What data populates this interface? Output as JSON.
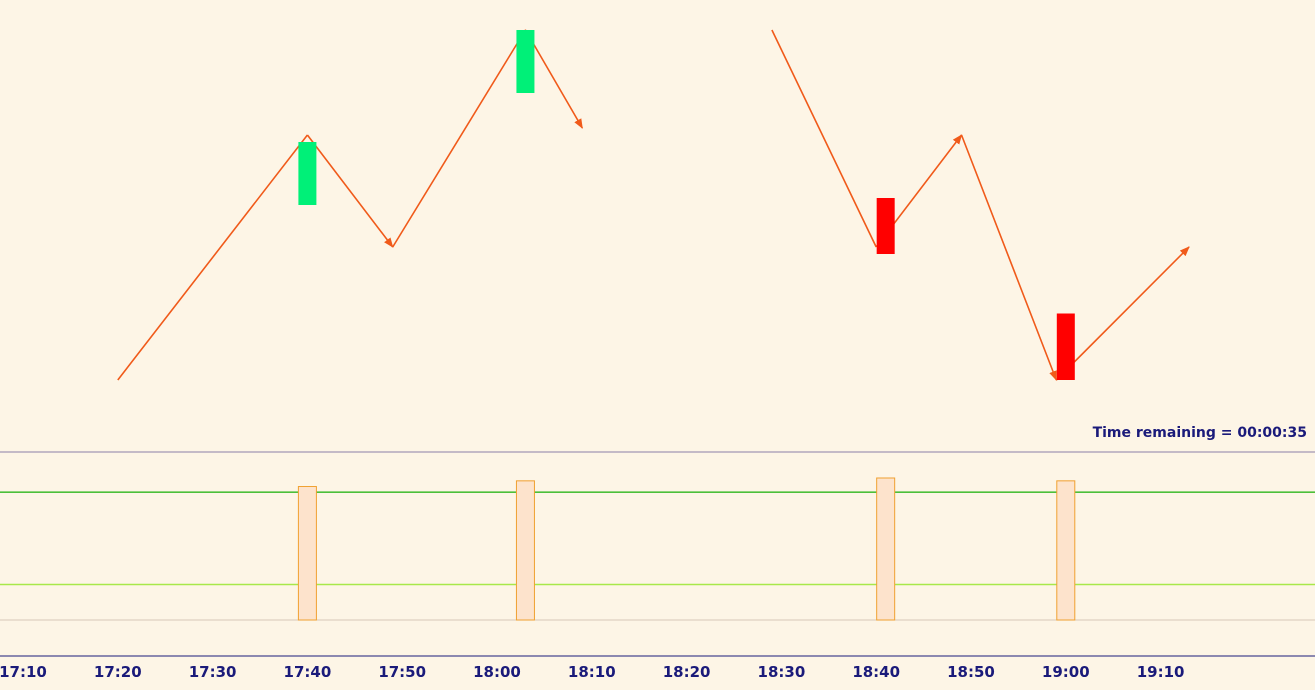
{
  "status": {
    "time_remaining_label": "Time remaining = 00:00:35"
  },
  "colors": {
    "background": "#fdf5e6",
    "zigzag": "#f05a1a",
    "bull_bar": "#00f078",
    "bear_bar": "#ff0000",
    "volume_fill": "#fde3cc",
    "volume_stroke": "#f0a030",
    "upper_level": "#4cbf3a",
    "lower_level": "#a8e84a",
    "divider": "#8a80a8",
    "axis_text": "#1a1a7a"
  },
  "chart_data": {
    "type": "line",
    "x_axis": {
      "ticks": [
        "17:10",
        "17:20",
        "17:30",
        "17:40",
        "17:50",
        "18:00",
        "18:10",
        "18:20",
        "18:30",
        "18:40",
        "18:50",
        "19:00",
        "19:10"
      ]
    },
    "series": [
      {
        "points": [
          {
            "x": "17:20",
            "level": 0.0
          },
          {
            "x": "17:40",
            "level": 0.7
          },
          {
            "x": "17:49",
            "level": 0.38
          },
          {
            "x": "18:03",
            "level": 1.0
          },
          {
            "x": "18:09",
            "level": 0.72
          }
        ]
      },
      {
        "points": [
          {
            "x": "18:29",
            "level": 1.0
          },
          {
            "x": "18:40",
            "level": 0.38
          },
          {
            "x": "18:49",
            "level": 0.7
          },
          {
            "x": "18:59",
            "level": 0.0
          },
          {
            "x": "19:13",
            "level": 0.38
          }
        ]
      }
    ],
    "bars": [
      {
        "x": "17:40",
        "kind": "bull",
        "top": 0.68,
        "bottom": 0.5
      },
      {
        "x": "18:03",
        "kind": "bull",
        "top": 1.0,
        "bottom": 0.82
      },
      {
        "x": "18:41",
        "kind": "bear",
        "top": 0.52,
        "bottom": 0.36
      },
      {
        "x": "19:00",
        "kind": "bear",
        "top": 0.19,
        "bottom": 0.0
      }
    ],
    "volume_panel": {
      "bars": [
        {
          "x": "17:40",
          "value": 0.94
        },
        {
          "x": "18:03",
          "value": 0.98
        },
        {
          "x": "18:41",
          "value": 1.0
        },
        {
          "x": "19:00",
          "value": 0.98
        }
      ],
      "levels": [
        0.9,
        0.25
      ]
    },
    "grid": false
  }
}
